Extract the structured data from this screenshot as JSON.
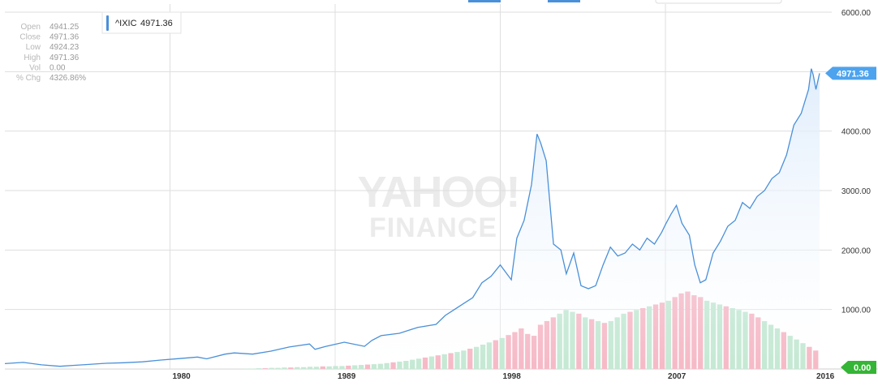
{
  "stats": [
    {
      "label": "Open",
      "value": "4941.25"
    },
    {
      "label": "Close",
      "value": "4971.36"
    },
    {
      "label": "Low",
      "value": "4924.23"
    },
    {
      "label": "High",
      "value": "4971.36"
    },
    {
      "label": "Vol",
      "value": "0.00"
    },
    {
      "label": "% Chg",
      "value": "4326.86%"
    }
  ],
  "legend": {
    "symbol": "^IXIC",
    "value": "4971.36"
  },
  "watermark": {
    "line1": "YAHOO!",
    "line2": "FINANCE"
  },
  "last_price_label": "4971.36",
  "last_volume_label": "0.00",
  "colors": {
    "line": "#4a90d9",
    "vol_up": "#b6e3c8",
    "vol_down": "#f4a8b8",
    "badge_price": "#4da3ee",
    "badge_vol": "#35b535"
  },
  "chart_data": {
    "type": "line",
    "title": "",
    "xlabel": "",
    "ylabel": "",
    "ylim": [
      0,
      6000
    ],
    "y_ticks": [
      "0.00",
      "1000.00",
      "2000.00",
      "3000.00",
      "4000.00",
      "5000.00",
      "6000.00"
    ],
    "x_ticks": [
      {
        "label": "1980",
        "year": 1980
      },
      {
        "label": "1989",
        "year": 1989
      },
      {
        "label": "1998",
        "year": 1998
      },
      {
        "label": "2007",
        "year": 2007
      },
      {
        "label": "2016",
        "year": 2016
      }
    ],
    "xlim": [
      1971.0,
      2015.4
    ],
    "grid": true,
    "series": [
      {
        "name": "^IXIC",
        "x": [
          1971.0,
          1972.0,
          1973.0,
          1974.0,
          1974.7,
          1975.5,
          1976.5,
          1977.5,
          1978.5,
          1979.5,
          1980.5,
          1981.5,
          1982.0,
          1983.0,
          1983.5,
          1984.5,
          1985.5,
          1986.5,
          1987.6,
          1987.9,
          1988.5,
          1989.5,
          1990.6,
          1991.0,
          1991.5,
          1992.5,
          1993.5,
          1994.5,
          1995.0,
          1995.5,
          1996.0,
          1996.5,
          1997.0,
          1997.5,
          1998.0,
          1998.6,
          1998.9,
          1999.3,
          1999.7,
          2000.0,
          2000.2,
          2000.5,
          2000.9,
          2001.3,
          2001.6,
          2002.0,
          2002.4,
          2002.8,
          2003.2,
          2003.6,
          2004.0,
          2004.4,
          2004.8,
          2005.2,
          2005.6,
          2006.0,
          2006.4,
          2006.8,
          2007.0,
          2007.3,
          2007.6,
          2007.9,
          2008.3,
          2008.6,
          2008.9,
          2009.2,
          2009.6,
          2010.0,
          2010.4,
          2010.8,
          2011.2,
          2011.6,
          2012.0,
          2012.4,
          2012.8,
          2013.2,
          2013.6,
          2014.0,
          2014.4,
          2014.8,
          2014.95,
          2015.05,
          2015.2,
          2015.4
        ],
        "values": [
          90,
          110,
          70,
          45,
          60,
          75,
          95,
          105,
          120,
          150,
          175,
          200,
          170,
          250,
          270,
          250,
          300,
          370,
          420,
          330,
          380,
          450,
          380,
          480,
          560,
          600,
          700,
          750,
          900,
          1000,
          1100,
          1200,
          1450,
          1560,
          1750,
          1500,
          2200,
          2500,
          3100,
          3950,
          3800,
          3500,
          2100,
          2000,
          1600,
          1950,
          1400,
          1350,
          1400,
          1750,
          2050,
          1900,
          1950,
          2100,
          2000,
          2200,
          2100,
          2300,
          2430,
          2600,
          2750,
          2450,
          2250,
          1750,
          1450,
          1500,
          1950,
          2150,
          2400,
          2500,
          2800,
          2700,
          2900,
          3000,
          3200,
          3300,
          3600,
          4100,
          4300,
          4700,
          5050,
          4950,
          4700,
          4971.36
        ]
      }
    ],
    "volume": {
      "year_range": [
        1984.0,
        2015.4
      ],
      "values": [
        1,
        1,
        2,
        2,
        3,
        3,
        4,
        4,
        5,
        5,
        6,
        6,
        7,
        7,
        8,
        8,
        9,
        10,
        11,
        12,
        13,
        14,
        16,
        18,
        20,
        22,
        25,
        28,
        31,
        34,
        37,
        40,
        43,
        46,
        50,
        55,
        60,
        66,
        72,
        78,
        84,
        92,
        100,
        110,
        95,
        90,
        120,
        130,
        140,
        150,
        160,
        155,
        150,
        140,
        135,
        130,
        125,
        130,
        140,
        150,
        155,
        160,
        165,
        170,
        175,
        180,
        185,
        195,
        205,
        210,
        200,
        195,
        185,
        180,
        175,
        170,
        165,
        160,
        155,
        150,
        140,
        130,
        120,
        110,
        100,
        90,
        80,
        70,
        60,
        50
      ],
      "down_flags": [
        0,
        0,
        0,
        1,
        0,
        0,
        0,
        1,
        0,
        0,
        0,
        0,
        1,
        0,
        0,
        0,
        1,
        0,
        0,
        1,
        0,
        0,
        0,
        1,
        0,
        0,
        0,
        0,
        1,
        0,
        1,
        0,
        1,
        0,
        0,
        1,
        0,
        0,
        0,
        1,
        0,
        1,
        1,
        1,
        1,
        1,
        1,
        1,
        1,
        0,
        0,
        0,
        1,
        0,
        1,
        0,
        1,
        0,
        0,
        0,
        1,
        0,
        1,
        0,
        1,
        1,
        0,
        1,
        1,
        1,
        1,
        1,
        0,
        0,
        0,
        1,
        0,
        0,
        0,
        1,
        1,
        0,
        0,
        0,
        1,
        0,
        0,
        0,
        1,
        1
      ],
      "ylim": [
        0,
        220
      ]
    }
  }
}
